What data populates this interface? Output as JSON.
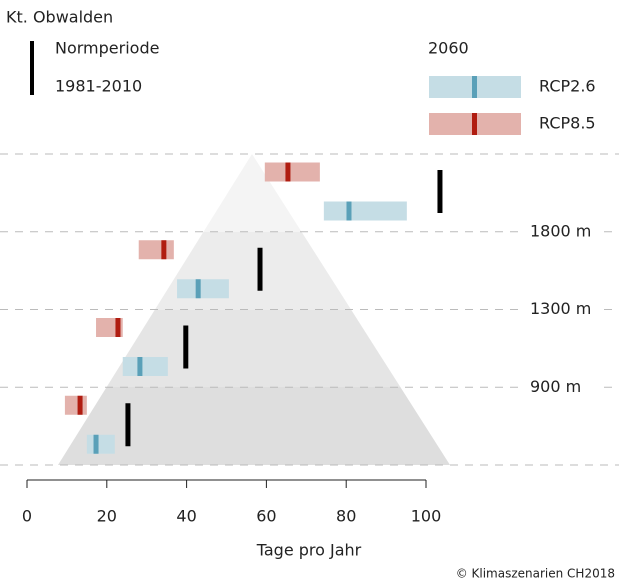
{
  "chart_data": {
    "type": "range",
    "title": "Kt. Obwalden",
    "reference": {
      "name": "Normperiode",
      "period": "1981-2010",
      "color": "#000000",
      "values": [
        25.3,
        39.8,
        58.4,
        103.5
      ]
    },
    "scenario_period": "2060",
    "series": [
      {
        "name": "RCP2.6",
        "color": "#c5dde5",
        "median_color": "#5aa0b8",
        "low": [
          15,
          24,
          37.6,
          74.4
        ],
        "median": [
          17.3,
          28.3,
          42.9,
          80.7
        ],
        "high": [
          22,
          35.3,
          50.6,
          95.2
        ]
      },
      {
        "name": "RCP8.5",
        "color": "#e3b2ac",
        "median_color": "#b01c10",
        "low": [
          9.5,
          17.3,
          28,
          59.6
        ],
        "median": [
          13.3,
          22.8,
          34.3,
          65.4
        ],
        "high": [
          15,
          24,
          36.8,
          73.4
        ]
      }
    ],
    "elevation_labels": [
      "900 m",
      "1300 m",
      "1800 m"
    ],
    "xlabel": "Tage pro Jahr",
    "xlim": [
      0,
      100
    ],
    "xticks": [
      0,
      20,
      40,
      60,
      80,
      100
    ],
    "source": "© Klimaszenarien CH2018"
  }
}
